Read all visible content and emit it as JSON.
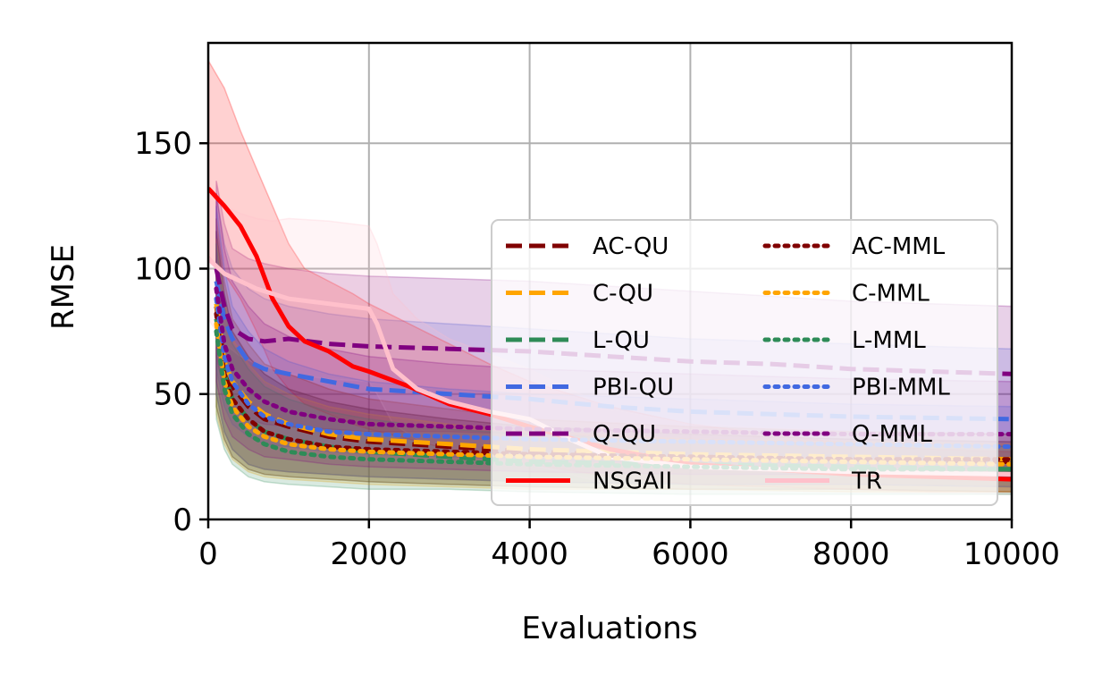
{
  "chart_data": {
    "type": "line",
    "xlabel": "Evaluations",
    "ylabel": "RMSE",
    "xlim": [
      0,
      10000
    ],
    "ylim": [
      0,
      190
    ],
    "xticks": [
      0,
      2000,
      4000,
      6000,
      8000,
      10000
    ],
    "yticks": [
      0,
      50,
      100,
      150
    ],
    "xtick_labels": [
      "0",
      "2000",
      "4000",
      "6000",
      "8000",
      "10000"
    ],
    "ytick_labels": [
      "0",
      "50",
      "100",
      "150"
    ],
    "grid": true,
    "legend": {
      "placement": "lower-right",
      "columns": 2
    },
    "series": [
      {
        "name": "AC-QU",
        "color": "#800000",
        "dash": "dashed",
        "band": true,
        "x": [
          100,
          200,
          300,
          500,
          700,
          1000,
          1500,
          2000,
          3000,
          4000,
          6000,
          8000,
          10000
        ],
        "y": [
          85,
          62,
          53,
          45,
          40,
          37,
          33,
          31,
          29,
          27,
          25,
          24,
          23
        ],
        "lower": [
          50,
          35,
          28,
          22,
          20,
          19,
          18,
          17,
          16,
          15,
          14,
          14,
          13
        ],
        "upper": [
          120,
          95,
          80,
          70,
          62,
          58,
          52,
          48,
          44,
          40,
          37,
          35,
          34
        ]
      },
      {
        "name": "C-QU",
        "color": "#FFA500",
        "dash": "dashed",
        "band": true,
        "x": [
          100,
          200,
          300,
          500,
          700,
          1000,
          1500,
          2000,
          3000,
          4000,
          6000,
          8000,
          10000
        ],
        "y": [
          86,
          63,
          55,
          47,
          42,
          38,
          34,
          32,
          30,
          28,
          26,
          25,
          24
        ],
        "lower": [
          50,
          35,
          28,
          22,
          20,
          19,
          18,
          17,
          16,
          15,
          14,
          14,
          13
        ],
        "upper": [
          120,
          95,
          80,
          70,
          62,
          58,
          52,
          48,
          44,
          40,
          37,
          35,
          34
        ]
      },
      {
        "name": "L-QU",
        "color": "#2E8B57",
        "dash": "dashed",
        "band": true,
        "x": [
          100,
          200,
          300,
          500,
          700,
          1000,
          1500,
          2000,
          3000,
          4000,
          6000,
          8000,
          10000
        ],
        "y": [
          80,
          58,
          48,
          40,
          35,
          32,
          29,
          27,
          25,
          23,
          22,
          21,
          20
        ],
        "lower": [
          45,
          32,
          25,
          20,
          18,
          17,
          16,
          15,
          14,
          13,
          12,
          12,
          11
        ],
        "upper": [
          115,
          90,
          75,
          65,
          58,
          52,
          47,
          44,
          40,
          37,
          34,
          32,
          31
        ]
      },
      {
        "name": "PBI-QU",
        "color": "#4169E1",
        "dash": "dashed",
        "band": true,
        "x": [
          100,
          200,
          300,
          500,
          700,
          1000,
          1500,
          2000,
          3000,
          4000,
          5000,
          6000,
          8000,
          10000
        ],
        "y": [
          95,
          80,
          72,
          63,
          60,
          58,
          55,
          52,
          50,
          48,
          45,
          43,
          41,
          40
        ],
        "lower": [
          60,
          45,
          38,
          33,
          30,
          29,
          27,
          26,
          25,
          24,
          23,
          22,
          21,
          20
        ],
        "upper": [
          130,
          110,
          100,
          92,
          88,
          85,
          82,
          80,
          78,
          76,
          74,
          72,
          70,
          68
        ]
      },
      {
        "name": "Q-QU",
        "color": "#800080",
        "dash": "dashed",
        "band": true,
        "x": [
          100,
          200,
          300,
          500,
          700,
          1000,
          1500,
          2000,
          3000,
          4000,
          5000,
          6000,
          7000,
          8000,
          9000,
          10000
        ],
        "y": [
          100,
          85,
          76,
          72,
          71,
          72,
          70,
          69,
          68,
          67,
          65,
          63,
          62,
          60,
          59,
          58
        ],
        "lower": [
          65,
          50,
          44,
          40,
          38,
          37,
          36,
          35,
          35,
          34,
          33,
          32,
          31,
          30,
          30,
          29
        ],
        "upper": [
          135,
          118,
          108,
          104,
          102,
          100,
          98,
          97,
          96,
          95,
          93,
          91,
          89,
          87,
          86,
          85
        ]
      },
      {
        "name": "NSGAII",
        "color": "#FF0000",
        "dash": "solid",
        "band": true,
        "x": [
          0,
          200,
          400,
          600,
          800,
          1000,
          1200,
          1500,
          1800,
          2000,
          2500,
          3000,
          3500,
          4000,
          5000,
          6000,
          7000,
          8000,
          9000,
          10000
        ],
        "y": [
          132,
          125,
          117,
          105,
          88,
          77,
          71,
          67,
          61,
          59,
          53,
          46,
          42,
          37,
          28,
          22,
          20,
          18,
          17,
          16
        ],
        "lower": [
          105,
          98,
          88,
          75,
          60,
          52,
          46,
          42,
          38,
          36,
          32,
          28,
          25,
          22,
          17,
          14,
          13,
          12,
          11,
          11
        ],
        "upper": [
          183,
          172,
          155,
          140,
          125,
          110,
          100,
          95,
          90,
          86,
          78,
          70,
          62,
          55,
          45,
          38,
          34,
          30,
          28,
          27
        ]
      },
      {
        "name": "TR",
        "color": "#FFC0CB",
        "dash": "solid",
        "band": true,
        "x": [
          0,
          200,
          400,
          600,
          800,
          1000,
          1500,
          2000,
          2100,
          2300,
          2600,
          3000,
          3500,
          4000,
          4500,
          5000,
          6000,
          8000,
          10000
        ],
        "y": [
          104,
          98,
          95,
          92,
          90,
          88,
          86,
          84,
          78,
          60,
          52,
          47,
          43,
          40,
          32,
          25,
          21,
          19,
          18
        ],
        "lower": [
          80,
          70,
          65,
          62,
          60,
          58,
          56,
          55,
          50,
          38,
          32,
          28,
          25,
          22,
          18,
          14,
          12,
          11,
          10
        ],
        "upper": [
          130,
          125,
          122,
          120,
          119,
          120,
          119,
          117,
          110,
          90,
          80,
          72,
          66,
          60,
          52,
          44,
          38,
          35,
          33
        ]
      },
      {
        "name": "AC-MML",
        "color": "#800000",
        "dash": "dotted",
        "band": true,
        "x": [
          100,
          200,
          300,
          500,
          700,
          1000,
          1500,
          2000,
          3000,
          4000,
          6000,
          8000,
          10000
        ],
        "y": [
          82,
          58,
          48,
          40,
          35,
          32,
          29,
          28,
          27,
          26,
          25,
          24,
          24
        ],
        "lower": [
          45,
          32,
          25,
          20,
          18,
          17,
          16,
          15,
          14,
          13,
          12,
          12,
          11
        ],
        "upper": [
          115,
          90,
          75,
          65,
          58,
          52,
          47,
          44,
          40,
          37,
          34,
          32,
          31
        ]
      },
      {
        "name": "C-MML",
        "color": "#FFA500",
        "dash": "dotted",
        "band": true,
        "x": [
          100,
          200,
          300,
          500,
          700,
          1000,
          1500,
          2000,
          3000,
          4000,
          6000,
          8000,
          10000
        ],
        "y": [
          78,
          55,
          45,
          37,
          33,
          30,
          28,
          27,
          26,
          25,
          24,
          23,
          22
        ],
        "lower": [
          42,
          30,
          24,
          19,
          17,
          16,
          15,
          14,
          13,
          12,
          12,
          11,
          11
        ],
        "upper": [
          112,
          88,
          72,
          62,
          55,
          50,
          45,
          42,
          38,
          35,
          32,
          31,
          30
        ]
      },
      {
        "name": "L-MML",
        "color": "#2E8B57",
        "dash": "dotted",
        "band": true,
        "x": [
          100,
          200,
          300,
          500,
          700,
          1000,
          1500,
          2000,
          3000,
          4000,
          6000,
          8000,
          10000
        ],
        "y": [
          75,
          52,
          42,
          34,
          30,
          27,
          25,
          24,
          23,
          22,
          21,
          20,
          20
        ],
        "lower": [
          40,
          28,
          22,
          17,
          15,
          14,
          13,
          12,
          12,
          11,
          10,
          10,
          10
        ],
        "upper": [
          110,
          85,
          70,
          60,
          53,
          48,
          43,
          40,
          36,
          34,
          31,
          30,
          29
        ]
      },
      {
        "name": "PBI-MML",
        "color": "#4169E1",
        "dash": "dotted",
        "band": true,
        "x": [
          100,
          200,
          300,
          500,
          700,
          1000,
          1500,
          2000,
          3000,
          4000,
          6000,
          8000,
          10000
        ],
        "y": [
          88,
          65,
          55,
          46,
          41,
          38,
          35,
          34,
          33,
          32,
          31,
          30,
          29
        ],
        "lower": [
          50,
          35,
          28,
          22,
          20,
          19,
          18,
          17,
          16,
          15,
          14,
          14,
          13
        ],
        "upper": [
          125,
          100,
          85,
          75,
          68,
          63,
          58,
          55,
          52,
          50,
          48,
          46,
          45
        ]
      },
      {
        "name": "Q-MML",
        "color": "#800080",
        "dash": "dotted",
        "band": true,
        "x": [
          100,
          200,
          300,
          500,
          700,
          1000,
          1500,
          2000,
          3000,
          4000,
          6000,
          8000,
          10000
        ],
        "y": [
          92,
          70,
          60,
          52,
          47,
          43,
          40,
          38,
          37,
          36,
          35,
          34,
          34
        ],
        "lower": [
          55,
          40,
          33,
          28,
          25,
          24,
          22,
          21,
          20,
          19,
          18,
          18,
          17
        ],
        "upper": [
          130,
          108,
          95,
          85,
          78,
          73,
          68,
          65,
          62,
          60,
          58,
          56,
          55
        ]
      }
    ],
    "legend_order": [
      "AC-QU",
      "C-QU",
      "L-QU",
      "PBI-QU",
      "Q-QU",
      "NSGAII",
      "AC-MML",
      "C-MML",
      "L-MML",
      "PBI-MML",
      "Q-MML",
      "TR"
    ]
  }
}
